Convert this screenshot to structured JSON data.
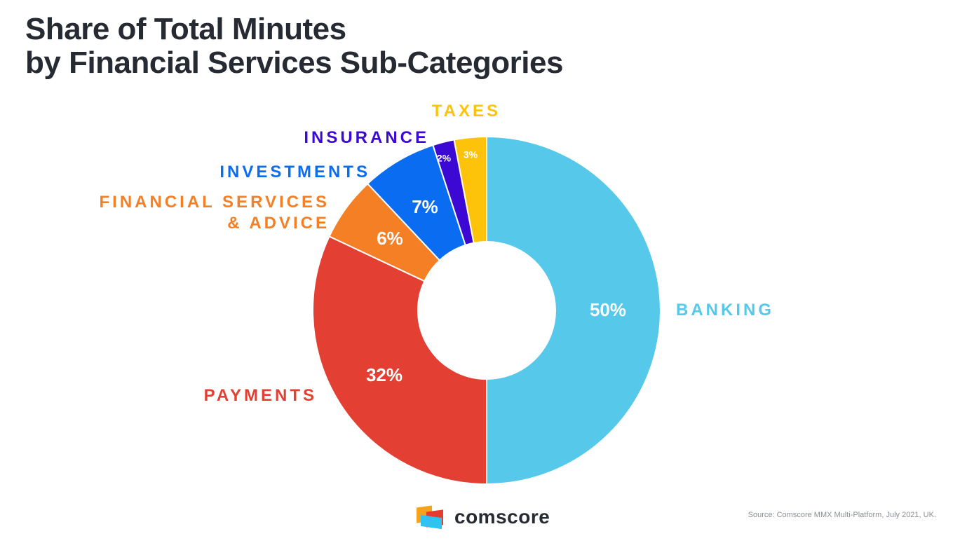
{
  "title": {
    "line1": "Share of Total Minutes",
    "line2": "by Financial Services Sub-Categories"
  },
  "chart_data": {
    "type": "pie",
    "variant": "donut",
    "categories": [
      "BANKING",
      "PAYMENTS",
      "FINANCIAL SERVICES & ADVICE",
      "INVESTMENTS",
      "INSURANCE",
      "TAXES"
    ],
    "category_lines": [
      [
        "BANKING"
      ],
      [
        "PAYMENTS"
      ],
      [
        "FINANCIAL SERVICES",
        "& ADVICE"
      ],
      [
        "INVESTMENTS"
      ],
      [
        "INSURANCE"
      ],
      [
        "TAXES"
      ]
    ],
    "values": [
      50,
      32,
      6,
      7,
      2,
      3
    ],
    "value_labels": [
      "50%",
      "32%",
      "6%",
      "7%",
      "2%",
      "3%"
    ],
    "colors": [
      "#56c8ea",
      "#e33f33",
      "#f47f24",
      "#0a6cf0",
      "#3c08d4",
      "#fdc30a"
    ],
    "start": "12 o'clock, clockwise",
    "legend": "none"
  },
  "logo": {
    "text": "comscore",
    "mark": "comscore-mark-icon"
  },
  "source": "Source: Comscore MMX Multi-Platform, July 2021, UK."
}
